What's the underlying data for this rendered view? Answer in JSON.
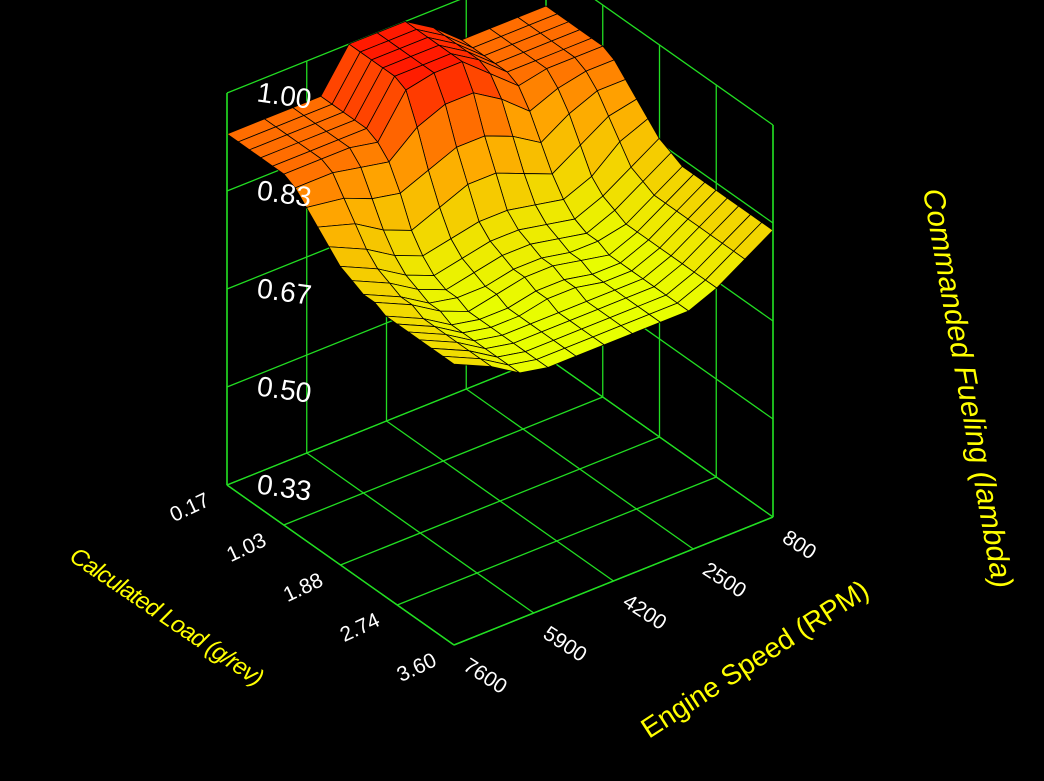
{
  "chart_data": {
    "type": "surface3d",
    "title": "",
    "zlabel": "Commanded Fueling (lambda)",
    "xlabel": "Calculated Load (g/rev)",
    "ylabel": "Engine Speed (RPM)",
    "x_ticks": [
      "0.17",
      "1.03",
      "1.88",
      "2.74",
      "3.60"
    ],
    "y_ticks": [
      "800",
      "2500",
      "4200",
      "5900",
      "7600"
    ],
    "z_ticks": [
      "0.33",
      "0.50",
      "0.67",
      "0.83",
      "1.00"
    ],
    "zlim": [
      0.33,
      1.0
    ],
    "xlim": [
      0.17,
      3.6
    ],
    "ylim": [
      800,
      7600
    ],
    "load": [
      0.17,
      0.34,
      0.51,
      0.68,
      0.86,
      1.03,
      1.2,
      1.37,
      1.54,
      1.71,
      1.88,
      2.06,
      2.23,
      2.4,
      2.57,
      2.74,
      2.91,
      3.08,
      3.26,
      3.43,
      3.6
    ],
    "rpm": [
      800,
      1400,
      2000,
      2600,
      3200,
      3800,
      4400,
      5000,
      5600,
      6200,
      6800,
      7600
    ],
    "lambda": [
      [
        0.93,
        0.93,
        0.93,
        0.93,
        0.97,
        1.0,
        1.0,
        1.0,
        0.93,
        0.93,
        0.93,
        0.93
      ],
      [
        0.93,
        0.93,
        0.93,
        0.93,
        0.97,
        1.0,
        1.0,
        1.0,
        0.93,
        0.93,
        0.93,
        0.93
      ],
      [
        0.93,
        0.93,
        0.93,
        0.93,
        0.97,
        1.0,
        1.0,
        1.0,
        0.93,
        0.93,
        0.93,
        0.93
      ],
      [
        0.93,
        0.93,
        0.93,
        0.93,
        0.97,
        1.0,
        1.0,
        1.0,
        0.93,
        0.93,
        0.93,
        0.93
      ],
      [
        0.93,
        0.93,
        0.93,
        0.93,
        0.97,
        1.0,
        1.0,
        1.0,
        0.93,
        0.93,
        0.93,
        0.93
      ],
      [
        0.93,
        0.93,
        0.93,
        0.92,
        0.96,
        1.0,
        1.0,
        0.99,
        0.92,
        0.93,
        0.93,
        0.93
      ],
      [
        0.92,
        0.92,
        0.91,
        0.89,
        0.93,
        0.96,
        0.96,
        0.94,
        0.9,
        0.91,
        0.92,
        0.92
      ],
      [
        0.9,
        0.9,
        0.88,
        0.85,
        0.88,
        0.9,
        0.9,
        0.88,
        0.86,
        0.87,
        0.89,
        0.9
      ],
      [
        0.88,
        0.87,
        0.84,
        0.81,
        0.83,
        0.85,
        0.85,
        0.83,
        0.81,
        0.83,
        0.86,
        0.88
      ],
      [
        0.86,
        0.84,
        0.8,
        0.78,
        0.79,
        0.8,
        0.8,
        0.79,
        0.78,
        0.8,
        0.83,
        0.86
      ],
      [
        0.84,
        0.81,
        0.78,
        0.76,
        0.77,
        0.78,
        0.78,
        0.77,
        0.76,
        0.78,
        0.81,
        0.84
      ],
      [
        0.83,
        0.8,
        0.77,
        0.75,
        0.76,
        0.77,
        0.77,
        0.76,
        0.75,
        0.77,
        0.8,
        0.83
      ],
      [
        0.82,
        0.79,
        0.76,
        0.75,
        0.75,
        0.76,
        0.76,
        0.75,
        0.75,
        0.76,
        0.79,
        0.82
      ],
      [
        0.82,
        0.79,
        0.76,
        0.74,
        0.75,
        0.76,
        0.76,
        0.75,
        0.74,
        0.76,
        0.79,
        0.82
      ],
      [
        0.82,
        0.79,
        0.76,
        0.74,
        0.74,
        0.75,
        0.75,
        0.74,
        0.74,
        0.75,
        0.78,
        0.81
      ],
      [
        0.82,
        0.79,
        0.76,
        0.74,
        0.74,
        0.75,
        0.75,
        0.74,
        0.74,
        0.75,
        0.78,
        0.81
      ],
      [
        0.82,
        0.79,
        0.76,
        0.74,
        0.74,
        0.74,
        0.74,
        0.74,
        0.74,
        0.75,
        0.78,
        0.81
      ],
      [
        0.82,
        0.79,
        0.76,
        0.74,
        0.74,
        0.74,
        0.74,
        0.74,
        0.74,
        0.75,
        0.78,
        0.81
      ],
      [
        0.82,
        0.79,
        0.76,
        0.74,
        0.74,
        0.74,
        0.74,
        0.74,
        0.74,
        0.75,
        0.78,
        0.81
      ],
      [
        0.82,
        0.79,
        0.76,
        0.74,
        0.74,
        0.74,
        0.74,
        0.74,
        0.74,
        0.75,
        0.78,
        0.81
      ],
      [
        0.82,
        0.79,
        0.76,
        0.74,
        0.74,
        0.74,
        0.74,
        0.74,
        0.74,
        0.75,
        0.78,
        0.81
      ]
    ]
  },
  "colors": {
    "background": "#000000",
    "box": "#22dd22",
    "tick_text": "#ffffff",
    "axis_title": "#ffff00",
    "surface_low": "#e8ff00",
    "surface_high": "#ff1a00",
    "mesh": "#000000"
  }
}
